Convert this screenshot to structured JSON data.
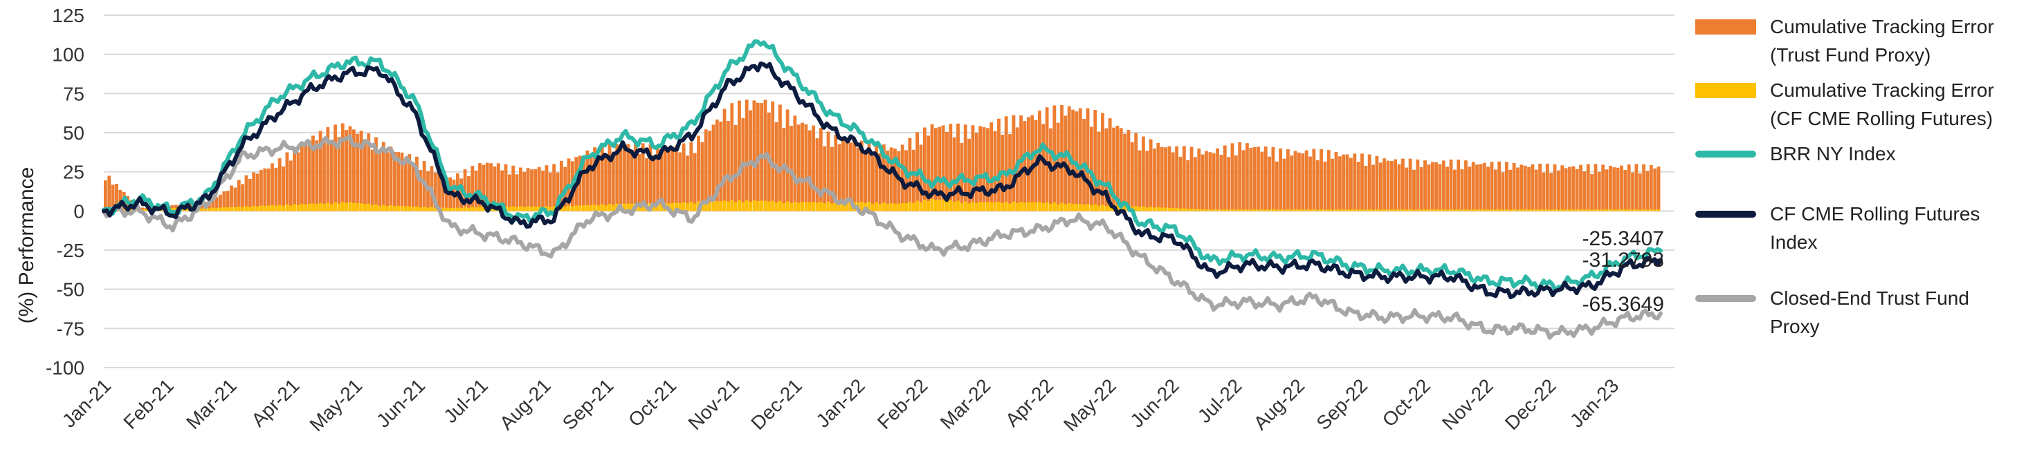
{
  "chart_data": {
    "type": "line",
    "title": "",
    "xlabel": "",
    "ylabel": "(%) Performance",
    "ylim": [
      -100,
      125
    ],
    "yticks": [
      125,
      100,
      75,
      50,
      25,
      0,
      -25,
      -50,
      -75,
      -100
    ],
    "x_tick_labels": [
      "Jan-21",
      "Feb-21",
      "Mar-21",
      "Apr-21",
      "May-21",
      "Jun-21",
      "Jul-21",
      "Aug-21",
      "Sep-21",
      "Oct-21",
      "Nov-21",
      "Dec-21",
      "Jan-22",
      "Feb-22",
      "Mar-22",
      "Apr-22",
      "May-22",
      "Jun-22",
      "Jul-22",
      "Aug-22",
      "Sep-22",
      "Oct-22",
      "Nov-22",
      "Dec-22",
      "Jan-23"
    ],
    "grid": true,
    "legend_position": "right",
    "series": [
      {
        "name": "Cumulative Tracking Error (Trust Fund Proxy)",
        "kind": "bar",
        "color": "#ED7D31",
        "values": [
          25,
          2,
          4,
          6,
          22,
          33,
          50,
          58,
          45,
          35,
          22,
          33,
          28,
          30,
          40,
          45,
          42,
          44,
          68,
          75,
          62,
          50,
          45,
          42,
          58,
          55,
          60,
          65,
          70,
          62,
          48,
          42,
          40,
          45,
          40,
          40,
          38,
          35,
          33,
          33,
          32,
          31,
          30,
          30,
          30,
          30
        ]
      },
      {
        "name": "Cumulative Tracking Error (CF CME Rolling Futures)",
        "kind": "bar",
        "color": "#FFC000",
        "values": [
          2,
          1,
          2,
          2,
          3,
          4,
          5,
          6,
          4,
          3,
          2,
          3,
          3,
          3,
          4,
          5,
          5,
          6,
          7,
          7,
          6,
          6,
          6,
          5,
          8,
          6,
          6,
          6,
          5,
          4,
          3,
          2,
          1,
          1,
          1,
          1,
          1,
          1,
          1,
          1,
          1,
          1,
          1,
          1,
          1,
          1
        ]
      },
      {
        "name": "BRR NY Index",
        "kind": "line",
        "color": "#2EB8A8",
        "values": [
          0,
          8,
          0,
          10,
          48,
          72,
          85,
          95,
          95,
          70,
          15,
          8,
          -5,
          0,
          35,
          48,
          42,
          55,
          90,
          110,
          85,
          62,
          48,
          28,
          18,
          20,
          22,
          40,
          33,
          15,
          -8,
          -12,
          -32,
          -28,
          -30,
          -28,
          -35,
          -38,
          -38,
          -38,
          -45,
          -45,
          -48,
          -42,
          -30,
          -25.34
        ]
      },
      {
        "name": "CF CME Rolling Futures Index",
        "kind": "line",
        "color": "#0D1B3E",
        "values": [
          0,
          5,
          -2,
          8,
          42,
          62,
          78,
          88,
          90,
          62,
          10,
          5,
          -8,
          -5,
          28,
          40,
          35,
          48,
          80,
          95,
          75,
          52,
          40,
          20,
          10,
          12,
          14,
          32,
          26,
          8,
          -15,
          -18,
          -40,
          -34,
          -36,
          -34,
          -40,
          -42,
          -42,
          -42,
          -52,
          -52,
          -50,
          -48,
          -35,
          -31.28
        ]
      },
      {
        "name": "Closed-End Trust Fund Proxy",
        "kind": "line",
        "color": "#A6A6A6",
        "values": [
          0,
          0,
          -10,
          5,
          35,
          40,
          42,
          45,
          40,
          28,
          -10,
          -15,
          -20,
          -28,
          -5,
          0,
          5,
          -5,
          20,
          35,
          22,
          10,
          0,
          -15,
          -25,
          -22,
          -15,
          -12,
          -5,
          -10,
          -30,
          -45,
          -60,
          -58,
          -60,
          -55,
          -65,
          -68,
          -67,
          -68,
          -76,
          -75,
          -78,
          -75,
          -68,
          -65.36
        ]
      }
    ],
    "end_labels": [
      "-25.3407",
      "-31.2793",
      "-65.3649"
    ]
  }
}
